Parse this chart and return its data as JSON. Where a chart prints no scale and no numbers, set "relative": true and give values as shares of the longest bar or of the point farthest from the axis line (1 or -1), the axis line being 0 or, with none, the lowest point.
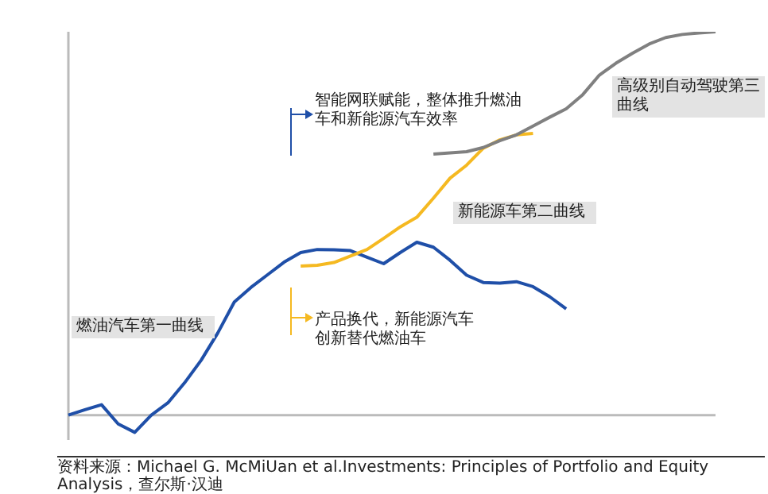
{
  "chart_data": {
    "type": "line",
    "relative": true,
    "marker": "none",
    "line_style": "solid",
    "categories": [
      null,
      null,
      null,
      null,
      null,
      null,
      null,
      null,
      null,
      null,
      null,
      null,
      null,
      null,
      null,
      null,
      null,
      null,
      null,
      null,
      null,
      null,
      null,
      null,
      null,
      null,
      null,
      null,
      null,
      null,
      null,
      null,
      null,
      null,
      null,
      null,
      null,
      null,
      null,
      null
    ],
    "series": [
      {
        "color": "#1f4fa8",
        "values": [
          0,
          0.014,
          0.027,
          -0.023,
          -0.045,
          0.0,
          0.032,
          0.084,
          0.143,
          0.214,
          0.295,
          0.333,
          0.366,
          0.399,
          0.424,
          0.432,
          0.431,
          0.429,
          0.412,
          0.395,
          0.424,
          0.451,
          0.438,
          0.404,
          0.365,
          0.346,
          0.344,
          0.348,
          0.335,
          0.309,
          0.277,
          null,
          null,
          null,
          null,
          null,
          null,
          null,
          null,
          null
        ]
      },
      {
        "color": "#f5b921",
        "values": [
          null,
          null,
          null,
          null,
          null,
          null,
          null,
          null,
          null,
          null,
          null,
          null,
          null,
          null,
          0.389,
          0.391,
          0.398,
          0.415,
          0.432,
          0.461,
          0.491,
          0.516,
          0.566,
          0.618,
          0.652,
          0.696,
          0.718,
          0.731,
          0.735,
          null,
          null,
          null,
          null,
          null,
          null,
          null,
          null,
          null,
          null,
          null
        ]
      },
      {
        "color": "#808080",
        "values": [
          null,
          null,
          null,
          null,
          null,
          null,
          null,
          null,
          null,
          null,
          null,
          null,
          null,
          null,
          null,
          null,
          null,
          null,
          null,
          null,
          null,
          null,
          0.681,
          0.684,
          0.687,
          0.698,
          0.716,
          0.731,
          0.754,
          0.777,
          0.799,
          0.836,
          0.887,
          0.918,
          0.944,
          0.968,
          0.985,
          0.993,
          0.997,
          1.0
        ]
      }
    ],
    "annotations": [
      "燃油汽车第一曲线",
      "新能源车第二曲线",
      "高级别自动驾驶第三曲线",
      "智能网联赋能，整体推升燃油车和新能源汽车效率",
      "产品换代，新能源汽车创新替代燃油车",
      "资料来源：Michael G. McMiUan et al.Investments: Principles of Portfolio and Equity Analysis，查尔斯·汉迪"
    ]
  }
}
